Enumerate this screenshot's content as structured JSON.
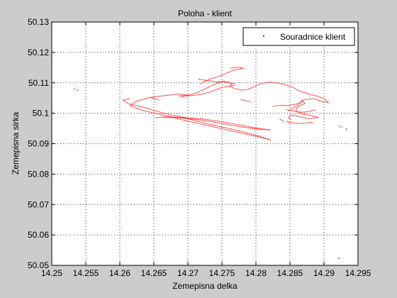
{
  "chart_data": {
    "type": "scatter",
    "title": "Poloha - klient",
    "xlabel": "Zemepisna delka",
    "ylabel": "Zemepisna sirka",
    "xlim": [
      14.25,
      14.295
    ],
    "ylim": [
      50.05,
      50.13
    ],
    "xticks": [
      14.25,
      14.255,
      14.26,
      14.265,
      14.27,
      14.275,
      14.28,
      14.285,
      14.29,
      14.295
    ],
    "xtick_labels": [
      "14.25",
      "14.255",
      "14.26",
      "14.265",
      "14.27",
      "14.275",
      "14.28",
      "14.285",
      "14.29",
      "14.295"
    ],
    "yticks": [
      50.05,
      50.06,
      50.07,
      50.08,
      50.09,
      50.1,
      50.11,
      50.12,
      50.13
    ],
    "ytick_labels": [
      "50.05",
      "50.06",
      "50.07",
      "50.08",
      "50.09",
      "50.1",
      "50.11",
      "50.12",
      "50.13"
    ],
    "grid": true,
    "legend_position": "top-right",
    "series": [
      {
        "name": "Souradnice klient",
        "color": "#ff0000",
        "marker": "point",
        "tracks": [
          [
            [
              14.2615,
              50.1048
            ],
            [
              14.2605,
              50.1043
            ],
            [
              14.2612,
              50.1032
            ],
            [
              14.2635,
              50.102
            ],
            [
              14.2665,
              50.1
            ],
            [
              14.2695,
              50.0985
            ],
            [
              14.273,
              50.0965
            ],
            [
              14.277,
              50.0945
            ],
            [
              14.2805,
              50.0925
            ],
            [
              14.2822,
              50.0912
            ],
            [
              14.2812,
              50.0918
            ],
            [
              14.2778,
              50.0935
            ],
            [
              14.2738,
              50.0955
            ],
            [
              14.2698,
              50.0975
            ],
            [
              14.2662,
              50.0995
            ],
            [
              14.2632,
              50.101
            ],
            [
              14.2615,
              50.1025
            ],
            [
              14.2625,
              50.104
            ],
            [
              14.2645,
              50.1052
            ],
            [
              14.2665,
              50.1058
            ]
          ],
          [
            [
              14.2653,
              50.0985
            ],
            [
              14.2665,
              50.0988
            ],
            [
              14.269,
              50.0987
            ],
            [
              14.272,
              50.0982
            ],
            [
              14.275,
              50.0972
            ],
            [
              14.2775,
              50.0962
            ],
            [
              14.2798,
              50.0952
            ],
            [
              14.2815,
              50.0947
            ],
            [
              14.2822,
              50.0945
            ],
            [
              14.2805,
              50.0947
            ],
            [
              14.2778,
              50.0955
            ],
            [
              14.2748,
              50.0967
            ],
            [
              14.272,
              50.0978
            ],
            [
              14.2688,
              50.0985
            ],
            [
              14.2662,
              50.0987
            ]
          ],
          [
            [
              14.2665,
              50.1058
            ],
            [
              14.2688,
              50.1063
            ],
            [
              14.2705,
              50.1058
            ],
            [
              14.272,
              50.1062
            ],
            [
              14.2735,
              50.1072
            ],
            [
              14.275,
              50.1085
            ],
            [
              14.2768,
              50.1092
            ]
          ],
          [
            [
              14.2688,
              50.1052
            ],
            [
              14.271,
              50.1065
            ],
            [
              14.2728,
              50.1083
            ],
            [
              14.2742,
              50.1098
            ],
            [
              14.2752,
              50.1106
            ],
            [
              14.2765,
              50.1098
            ],
            [
              14.2762,
              50.1088
            ],
            [
              14.2768,
              50.1082
            ],
            [
              14.2778,
              50.1076
            ],
            [
              14.2788,
              50.1078
            ],
            [
              14.2798,
              50.1088
            ],
            [
              14.2808,
              50.1098
            ],
            [
              14.2822,
              50.1103
            ]
          ],
          [
            [
              14.2718,
              50.1097
            ],
            [
              14.2733,
              50.1113
            ],
            [
              14.2748,
              50.1123
            ],
            [
              14.2758,
              50.1133
            ],
            [
              14.2768,
              50.1142
            ],
            [
              14.2782,
              50.1148
            ],
            [
              14.2772,
              50.1152
            ],
            [
              14.2762,
              50.1148
            ]
          ],
          [
            [
              14.2715,
              50.1112
            ],
            [
              14.2728,
              50.1108
            ],
            [
              14.2742,
              50.1103
            ],
            [
              14.2758,
              50.1102
            ],
            [
              14.277,
              50.1096
            ]
          ],
          [
            [
              14.2688,
              50.1058
            ],
            [
              14.2698,
              50.1058
            ],
            [
              14.2702,
              50.1055
            ]
          ],
          [
            [
              14.2645,
              50.1052
            ],
            [
              14.2652,
              50.1047
            ],
            [
              14.2658,
              50.1043
            ]
          ],
          [
            [
              14.2778,
              50.1045
            ],
            [
              14.2785,
              50.1041
            ],
            [
              14.2793,
              50.1038
            ]
          ],
          [
            [
              14.2822,
              50.1102
            ],
            [
              14.2838,
              50.1097
            ],
            [
              14.2855,
              50.1085
            ],
            [
              14.2865,
              50.1072
            ],
            [
              14.2878,
              50.1063
            ],
            [
              14.2892,
              50.1055
            ],
            [
              14.2902,
              50.1045
            ],
            [
              14.2907,
              50.1035
            ],
            [
              14.2897,
              50.1038
            ],
            [
              14.2885,
              50.1048
            ],
            [
              14.2872,
              50.1045
            ],
            [
              14.2862,
              50.1032
            ],
            [
              14.2848,
              50.1025
            ],
            [
              14.2835,
              50.1026
            ],
            [
              14.2825,
              50.1022
            ]
          ],
          [
            [
              14.2848,
              50.1008
            ],
            [
              14.2862,
              50.1028
            ],
            [
              14.2868,
              50.1042
            ],
            [
              14.2872,
              50.1032
            ],
            [
              14.2862,
              50.1022
            ],
            [
              14.2858,
              50.1008
            ],
            [
              14.2868,
              50.0998
            ],
            [
              14.2882,
              50.0992
            ],
            [
              14.2892,
              50.0986
            ],
            [
              14.2878,
              50.0982
            ],
            [
              14.2865,
              50.0988
            ],
            [
              14.2852,
              50.0995
            ],
            [
              14.2848,
              50.0985
            ],
            [
              14.2852,
              50.0978
            ]
          ],
          [
            [
              14.2845,
              50.1012
            ],
            [
              14.2858,
              50.1006
            ],
            [
              14.2868,
              50.1003
            ],
            [
              14.2878,
              50.1006
            ],
            [
              14.2888,
              50.1012
            ]
          ],
          [
            [
              14.2845,
              50.0972
            ],
            [
              14.2855,
              50.0968
            ],
            [
              14.2868,
              50.0966
            ],
            [
              14.2878,
              50.097
            ],
            [
              14.2884,
              50.0968
            ]
          ],
          [
            [
              14.2835,
              50.0982
            ],
            [
              14.2838,
              50.0977
            ],
            [
              14.2842,
              50.0972
            ]
          ],
          [
            [
              14.2922,
              50.0958
            ],
            [
              14.2926,
              50.0953
            ]
          ],
          [
            [
              14.2532,
              50.1082
            ],
            [
              14.2535,
              50.1077
            ]
          ]
        ],
        "points": [
          [
            14.2933,
            50.0948
          ],
          [
            14.2922,
            50.0523
          ],
          [
            14.2538,
            50.1076
          ]
        ]
      }
    ]
  }
}
